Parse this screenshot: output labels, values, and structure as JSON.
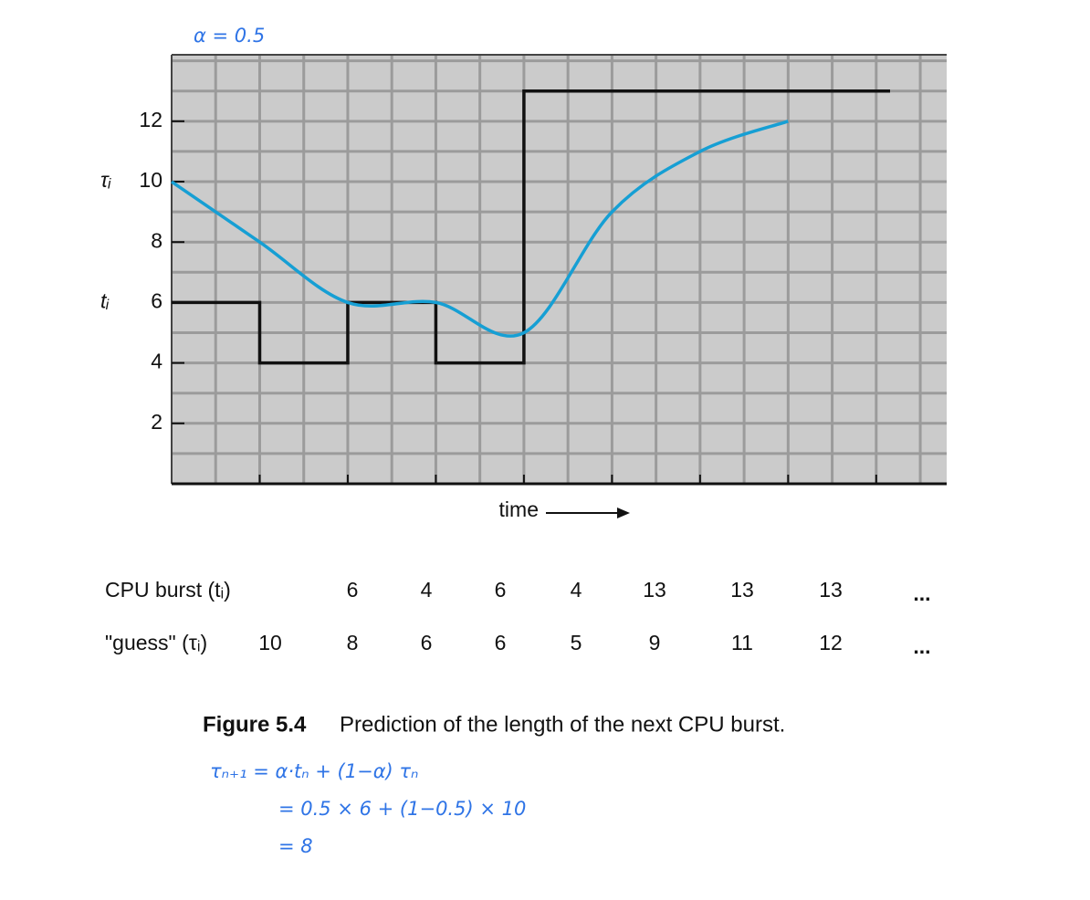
{
  "chart_data": {
    "type": "step_and_curve",
    "ylim": [
      0,
      14.2
    ],
    "yticks": [
      2,
      4,
      6,
      8,
      10,
      12
    ],
    "xlim": [
      0,
      8.8
    ],
    "xticks": [
      1,
      2,
      3,
      4,
      5,
      6,
      7,
      8
    ],
    "grid": true,
    "ylabels": [
      {
        "label": "τᵢ",
        "value": 10
      },
      {
        "label": "tᵢ",
        "value": 6
      }
    ],
    "xlabel": "time",
    "series": [
      {
        "kind": "step",
        "color": "#111111",
        "values": [
          6,
          4,
          6,
          4,
          13,
          13,
          13
        ]
      },
      {
        "kind": "curve",
        "color": "#169fd4",
        "values": [
          10,
          8,
          6,
          6,
          5,
          9,
          11,
          12
        ]
      }
    ]
  },
  "table": {
    "rows": [
      {
        "label": "CPU burst (tᵢ)",
        "series": 0,
        "offset": 1
      },
      {
        "label": "\"guess\" (τᵢ)",
        "series": 1,
        "offset": 0
      }
    ],
    "ellipsis": "..."
  },
  "caption": {
    "number": "Figure 5.4",
    "text": "Prediction of the length of the next CPU burst."
  },
  "handwriting": {
    "alpha": "α = 0.5",
    "lines": [
      "τₙ₊₁ = α·tₙ + (1−α) τₙ",
      "= 0.5 × 6 + (1−0.5) × 10",
      "= 8"
    ]
  }
}
